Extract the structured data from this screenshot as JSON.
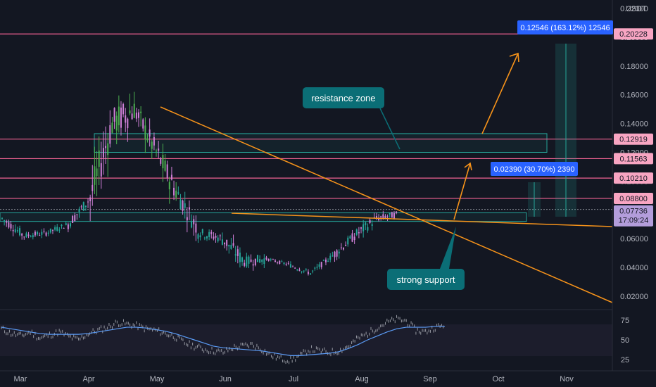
{
  "chart_data": [
    {
      "type": "candlestick",
      "symbol_unit": "USDT",
      "x_labels": [
        "Mar",
        "Apr",
        "May",
        "Jun",
        "Jul",
        "Aug",
        "Sep",
        "Oct",
        "Nov"
      ],
      "y_ticks": [
        "0.22000",
        "0.20000",
        "0.18000",
        "0.16000",
        "0.14000",
        "0.12000",
        "0.10000",
        "0.08000",
        "0.06000",
        "0.04000",
        "0.02000"
      ],
      "ylim": [
        0.0,
        0.222
      ],
      "candles_daily": {
        "start_month": "Mar",
        "values": [
          {
            "date": "Mar",
            "o": 0.082,
            "h": 0.086,
            "l": 0.07,
            "c": 0.074
          },
          {
            "date": "Mar 10",
            "o": 0.066,
            "h": 0.072,
            "l": 0.058,
            "c": 0.062
          },
          {
            "date": "Mar 20",
            "o": 0.06,
            "h": 0.068,
            "l": 0.054,
            "c": 0.064
          },
          {
            "date": "Apr",
            "o": 0.064,
            "h": 0.072,
            "l": 0.058,
            "c": 0.07
          },
          {
            "date": "Apr 10",
            "o": 0.074,
            "h": 0.092,
            "l": 0.068,
            "c": 0.088
          },
          {
            "date": "Apr 20",
            "o": 0.09,
            "h": 0.184,
            "l": 0.086,
            "c": 0.14
          },
          {
            "date": "May",
            "o": 0.15,
            "h": 0.184,
            "l": 0.13,
            "c": 0.15
          },
          {
            "date": "May 10",
            "o": 0.15,
            "h": 0.158,
            "l": 0.11,
            "c": 0.12
          },
          {
            "date": "May 20",
            "o": 0.11,
            "h": 0.118,
            "l": 0.08,
            "c": 0.09
          },
          {
            "date": "Jun",
            "o": 0.08,
            "h": 0.086,
            "l": 0.055,
            "c": 0.064
          },
          {
            "date": "Jun 10",
            "o": 0.066,
            "h": 0.078,
            "l": 0.056,
            "c": 0.06
          },
          {
            "date": "Jun 20",
            "o": 0.058,
            "h": 0.062,
            "l": 0.03,
            "c": 0.044
          },
          {
            "date": "Jul",
            "o": 0.044,
            "h": 0.048,
            "l": 0.04,
            "c": 0.046
          },
          {
            "date": "Jul 10",
            "o": 0.045,
            "h": 0.048,
            "l": 0.038,
            "c": 0.042
          },
          {
            "date": "Jul 20",
            "o": 0.04,
            "h": 0.044,
            "l": 0.033,
            "c": 0.036
          },
          {
            "date": "Aug",
            "o": 0.038,
            "h": 0.05,
            "l": 0.036,
            "c": 0.048
          },
          {
            "date": "Aug 10",
            "o": 0.048,
            "h": 0.066,
            "l": 0.046,
            "c": 0.062
          },
          {
            "date": "Aug 20",
            "o": 0.062,
            "h": 0.08,
            "l": 0.058,
            "c": 0.074
          },
          {
            "date": "Sep",
            "o": 0.068,
            "h": 0.08,
            "l": 0.064,
            "c": 0.077
          }
        ]
      },
      "horizontal_levels": [
        {
          "value": 0.20228,
          "label": "0.20228"
        },
        {
          "value": 0.12919,
          "label": "0.12919"
        },
        {
          "value": 0.11563,
          "label": "0.11563"
        },
        {
          "value": 0.1021,
          "label": "0.10210"
        },
        {
          "value": 0.088,
          "label": "0.08800"
        }
      ],
      "current_price": {
        "label": "0.07736",
        "countdown": "17:09:24",
        "value": 0.07736
      },
      "resistance_zone": {
        "low": 0.12,
        "high": 0.133
      },
      "support_zone": {
        "low": 0.072,
        "high": 0.078
      },
      "measure_labels": [
        {
          "text": "0.12546 (163.12%) 12546"
        },
        {
          "text": "0.02390 (30.70%) 2390"
        }
      ],
      "callouts": [
        {
          "text": "resistance zone"
        },
        {
          "text": "strong support"
        }
      ],
      "colors": {
        "background": "#131722",
        "up": "#26a69a",
        "up_bright": "#4caf50",
        "down": "#d080d8",
        "level_line": "#f06292",
        "level_tag": "#f8a5c2",
        "trend": "#f7931a",
        "callout_bg": "#0b6e76",
        "measure_bg": "#2962ff",
        "zone": "#26a69a",
        "current_tag": "#b39ddb"
      }
    },
    {
      "type": "line",
      "name": "RSI",
      "y_ticks": [
        "75",
        "50",
        "25"
      ],
      "ylim": [
        20,
        85
      ],
      "band": [
        30,
        70
      ],
      "rsi_values": [
        64,
        58,
        55,
        60,
        52,
        56,
        60,
        54,
        50,
        58,
        62,
        66,
        72,
        70,
        68,
        64,
        62,
        58,
        54,
        46,
        42,
        38,
        36,
        34,
        40,
        42,
        44,
        38,
        30,
        26,
        24,
        30,
        38,
        36,
        34,
        36,
        42,
        52,
        58,
        66,
        72,
        76,
        74,
        62,
        60,
        66,
        68
      ],
      "ma_values": [
        66,
        64,
        62,
        60,
        58,
        57,
        57,
        57,
        57,
        58,
        60,
        62,
        64,
        66,
        66,
        65,
        63,
        61,
        58,
        54,
        50,
        46,
        42,
        40,
        39,
        38,
        37,
        36,
        34,
        32,
        30,
        30,
        31,
        32,
        33,
        35,
        39,
        44,
        50,
        55,
        60,
        64,
        66,
        66,
        66,
        67,
        67
      ]
    }
  ]
}
